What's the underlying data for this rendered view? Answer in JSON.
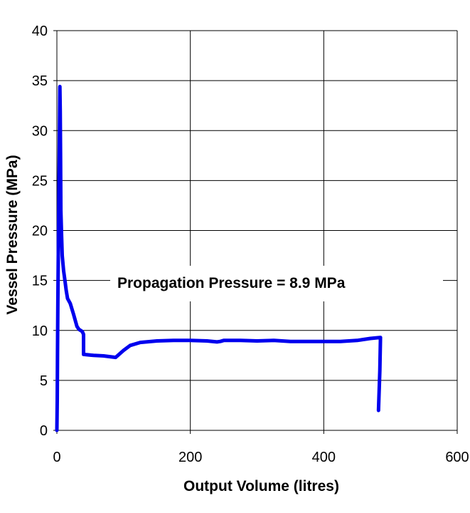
{
  "chart_data": {
    "type": "line",
    "title": "",
    "xlabel": "Output Volume (litres)",
    "ylabel": "Vessel Pressure (MPa)",
    "xlim": [
      0,
      600
    ],
    "ylim": [
      0,
      40
    ],
    "x_ticks": [
      "0",
      "200",
      "400",
      "600"
    ],
    "y_ticks": [
      "0",
      "5",
      "10",
      "15",
      "20",
      "25",
      "30",
      "35",
      "40"
    ],
    "grid": true,
    "annotation": "Propagation Pressure  = 8.9 MPa",
    "series": [
      {
        "color": "#0000ee",
        "points": [
          [
            0,
            0
          ],
          [
            0.5,
            3
          ],
          [
            1,
            8
          ],
          [
            1.5,
            13
          ],
          [
            2.5,
            20
          ],
          [
            3.5,
            27
          ],
          [
            4.5,
            34.4
          ],
          [
            5,
            32
          ],
          [
            5.5,
            27
          ],
          [
            6,
            22
          ],
          [
            7,
            19.5
          ],
          [
            8,
            17.5
          ],
          [
            10,
            16
          ],
          [
            12,
            15
          ],
          [
            14,
            14
          ],
          [
            16,
            13.2
          ],
          [
            20,
            12.7
          ],
          [
            25,
            11.6
          ],
          [
            30,
            10.4
          ],
          [
            33,
            10.1
          ],
          [
            38,
            9.9
          ],
          [
            40,
            9.6
          ],
          [
            40,
            7.6
          ],
          [
            55,
            7.5
          ],
          [
            70,
            7.45
          ],
          [
            88,
            7.3
          ],
          [
            100,
            8.0
          ],
          [
            110,
            8.5
          ],
          [
            125,
            8.8
          ],
          [
            150,
            8.95
          ],
          [
            175,
            9.0
          ],
          [
            200,
            9.0
          ],
          [
            225,
            8.95
          ],
          [
            240,
            8.85
          ],
          [
            245,
            8.9
          ],
          [
            250,
            9.0
          ],
          [
            275,
            9.0
          ],
          [
            300,
            8.95
          ],
          [
            325,
            9.0
          ],
          [
            350,
            8.9
          ],
          [
            375,
            8.9
          ],
          [
            400,
            8.9
          ],
          [
            425,
            8.9
          ],
          [
            450,
            9.0
          ],
          [
            470,
            9.2
          ],
          [
            485,
            9.3
          ],
          [
            484,
            6.0
          ],
          [
            482,
            2.0
          ]
        ]
      }
    ]
  }
}
